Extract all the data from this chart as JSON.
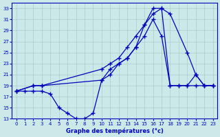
{
  "xlabel": "Graphe des températures (°c)",
  "background_color": "#cce8e8",
  "grid_color": "#aacccc",
  "line_color": "#0000bb",
  "xlim": [
    -0.5,
    23.5
  ],
  "ylim": [
    13,
    34
  ],
  "xticks": [
    0,
    1,
    2,
    3,
    4,
    5,
    6,
    7,
    8,
    9,
    10,
    11,
    12,
    13,
    14,
    15,
    16,
    17,
    18,
    19,
    20,
    21,
    22,
    23
  ],
  "yticks": [
    13,
    15,
    17,
    19,
    21,
    23,
    25,
    27,
    29,
    31,
    33
  ],
  "series_min_x": [
    0,
    1,
    2,
    3,
    4,
    5,
    6,
    7,
    8,
    9,
    10,
    11,
    12,
    13,
    14,
    15,
    16,
    17,
    18,
    19,
    20,
    21,
    22,
    23
  ],
  "series_min_y": [
    18,
    18,
    18,
    18,
    17.5,
    15,
    14,
    13,
    13,
    14,
    20,
    22,
    23,
    24,
    26,
    30,
    32,
    33,
    19,
    19,
    19,
    19,
    19,
    19
  ],
  "series_max_x": [
    0,
    2,
    3,
    10,
    11,
    12,
    13,
    14,
    15,
    16,
    17,
    18,
    20,
    21,
    22,
    23
  ],
  "series_max_y": [
    18,
    19,
    19,
    22,
    23,
    24,
    26,
    28,
    30,
    33,
    33,
    32,
    25,
    21,
    19,
    19
  ],
  "series_mid_x": [
    0,
    2,
    3,
    10,
    11,
    12,
    13,
    14,
    15,
    16,
    17,
    18,
    19,
    20,
    21,
    22,
    23
  ],
  "series_mid_y": [
    18,
    19,
    19,
    20,
    21,
    23,
    24,
    26,
    28,
    31,
    28,
    19,
    19,
    19,
    21,
    19,
    19
  ]
}
